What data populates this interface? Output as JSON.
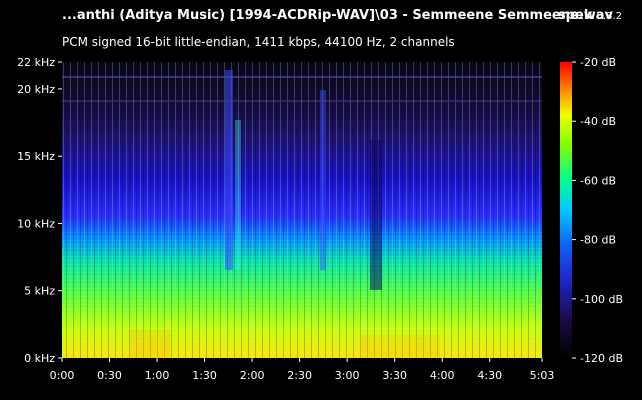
{
  "header": {
    "title": "...anthi (Aditya Music) [1994-ACDRip-WAV]\\03 - Semmeene Semmeene.wav",
    "app_name": "spek",
    "app_version": "0.8.2",
    "subtitle": "PCM signed 16-bit little-endian, 1411 kbps, 44100 Hz, 2 channels"
  },
  "chart_data": {
    "type": "heatmap",
    "x_axis": {
      "ticks": [
        "0:00",
        "0:30",
        "1:00",
        "1:30",
        "2:00",
        "2:30",
        "3:00",
        "3:30",
        "4:00",
        "4:30",
        "5:03"
      ],
      "range_seconds": [
        0,
        303
      ]
    },
    "y_axis": {
      "ticks": [
        "0 kHz",
        "5 kHz",
        "10 kHz",
        "15 kHz",
        "20 kHz",
        "22 kHz"
      ],
      "range_khz": [
        0,
        22
      ]
    },
    "colorbar": {
      "ticks": [
        "-20 dB",
        "-40 dB",
        "-60 dB",
        "-80 dB",
        "-100 dB",
        "-120 dB"
      ],
      "range_db": [
        -120,
        -20
      ]
    }
  }
}
